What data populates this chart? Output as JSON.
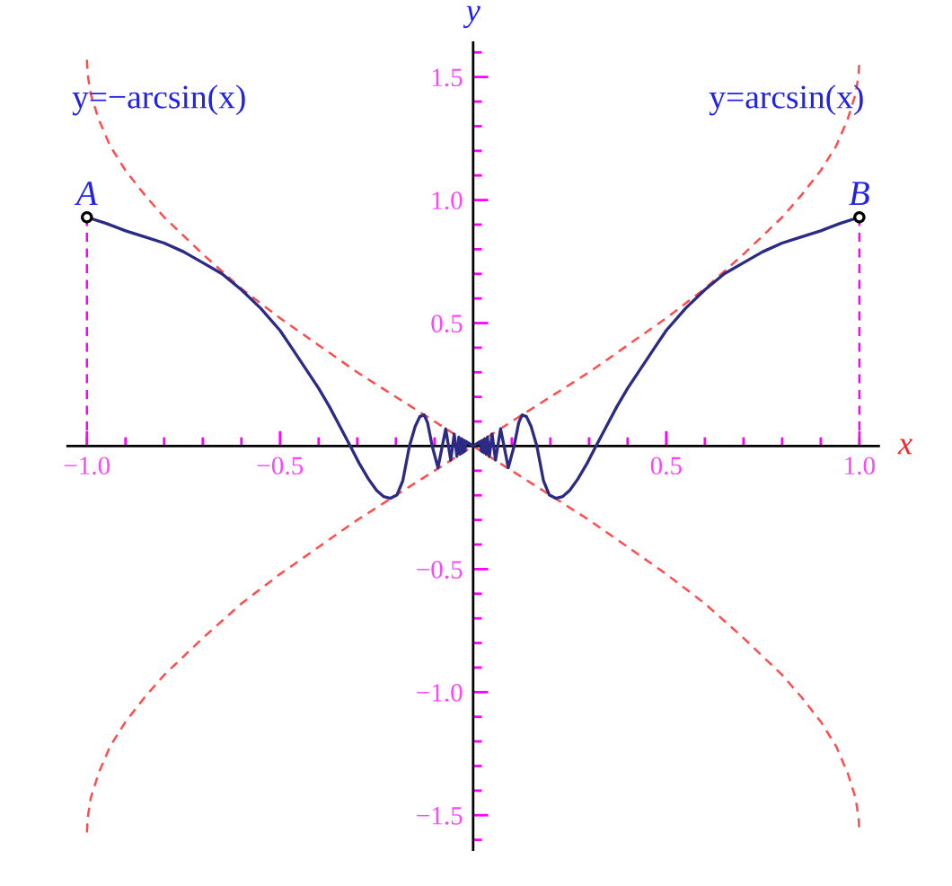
{
  "chart_data": {
    "type": "line",
    "xlabel": "x",
    "ylabel": "y",
    "xlim": [
      -1.05,
      1.05
    ],
    "ylim": [
      -1.64,
      1.64
    ],
    "grid": false,
    "xticks": [
      {
        "value": -1.0,
        "label": "−1.0"
      },
      {
        "value": -0.9,
        "label": null
      },
      {
        "value": -0.8,
        "label": null
      },
      {
        "value": -0.7,
        "label": null
      },
      {
        "value": -0.6,
        "label": null
      },
      {
        "value": -0.5,
        "label": "−0.5"
      },
      {
        "value": -0.4,
        "label": null
      },
      {
        "value": -0.3,
        "label": null
      },
      {
        "value": -0.2,
        "label": null
      },
      {
        "value": -0.1,
        "label": null
      },
      {
        "value": 0.1,
        "label": null
      },
      {
        "value": 0.2,
        "label": null
      },
      {
        "value": 0.3,
        "label": null
      },
      {
        "value": 0.4,
        "label": null
      },
      {
        "value": 0.5,
        "label": "0.5"
      },
      {
        "value": 0.6,
        "label": null
      },
      {
        "value": 0.7,
        "label": null
      },
      {
        "value": 0.8,
        "label": null
      },
      {
        "value": 0.9,
        "label": null
      },
      {
        "value": 1.0,
        "label": "1.0"
      }
    ],
    "yticks": [
      {
        "value": -1.6,
        "label": null
      },
      {
        "value": -1.5,
        "label": "−1.5"
      },
      {
        "value": -1.4,
        "label": null
      },
      {
        "value": -1.3,
        "label": null
      },
      {
        "value": -1.2,
        "label": null
      },
      {
        "value": -1.1,
        "label": null
      },
      {
        "value": -1.0,
        "label": "−1.0"
      },
      {
        "value": -0.9,
        "label": null
      },
      {
        "value": -0.8,
        "label": null
      },
      {
        "value": -0.7,
        "label": null
      },
      {
        "value": -0.6,
        "label": null
      },
      {
        "value": -0.5,
        "label": "−0.5"
      },
      {
        "value": -0.4,
        "label": null
      },
      {
        "value": -0.3,
        "label": null
      },
      {
        "value": -0.2,
        "label": null
      },
      {
        "value": -0.1,
        "label": null
      },
      {
        "value": 0.1,
        "label": null
      },
      {
        "value": 0.2,
        "label": null
      },
      {
        "value": 0.3,
        "label": null
      },
      {
        "value": 0.4,
        "label": null
      },
      {
        "value": 0.5,
        "label": "0.5"
      },
      {
        "value": 0.6,
        "label": null
      },
      {
        "value": 0.7,
        "label": null
      },
      {
        "value": 0.8,
        "label": null
      },
      {
        "value": 0.9,
        "label": null
      },
      {
        "value": 1.0,
        "label": "1.0"
      },
      {
        "value": 1.1,
        "label": null
      },
      {
        "value": 1.2,
        "label": null
      },
      {
        "value": 1.3,
        "label": null
      },
      {
        "value": 1.4,
        "label": null
      },
      {
        "value": 1.5,
        "label": "1.5"
      },
      {
        "value": 1.6,
        "label": null
      }
    ],
    "series": [
      {
        "name": "y=arcsin(x)",
        "color": "#ff4d4d",
        "line_style": "dashed",
        "x": [
          -1,
          -0.998,
          -0.99,
          -0.97,
          -0.94,
          -0.9,
          -0.85,
          -0.8,
          -0.7,
          -0.6,
          -0.5,
          -0.4,
          -0.3,
          -0.2,
          -0.1,
          0,
          0.1,
          0.2,
          0.3,
          0.4,
          0.5,
          0.6,
          0.7,
          0.8,
          0.85,
          0.9,
          0.94,
          0.97,
          0.99,
          0.998,
          1
        ],
        "values": [
          -1.57,
          -1.51,
          -1.43,
          -1.33,
          -1.22,
          -1.12,
          -1.02,
          -0.93,
          -0.78,
          -0.64,
          -0.52,
          -0.41,
          -0.3,
          -0.2,
          -0.1,
          0,
          0.1,
          0.2,
          0.3,
          0.41,
          0.52,
          0.64,
          0.78,
          0.93,
          1.02,
          1.12,
          1.22,
          1.33,
          1.43,
          1.51,
          1.57
        ]
      },
      {
        "name": "y=−arcsin(x)",
        "color": "#ff4d4d",
        "line_style": "dashed",
        "x": [
          -1,
          -0.998,
          -0.99,
          -0.97,
          -0.94,
          -0.9,
          -0.85,
          -0.8,
          -0.7,
          -0.6,
          -0.5,
          -0.4,
          -0.3,
          -0.2,
          -0.1,
          0,
          0.1,
          0.2,
          0.3,
          0.4,
          0.5,
          0.6,
          0.7,
          0.8,
          0.85,
          0.9,
          0.94,
          0.97,
          0.99,
          0.998,
          1
        ],
        "values": [
          1.57,
          1.51,
          1.43,
          1.33,
          1.22,
          1.12,
          1.02,
          0.93,
          0.78,
          0.64,
          0.52,
          0.41,
          0.3,
          0.2,
          0.1,
          0,
          -0.1,
          -0.2,
          -0.3,
          -0.41,
          -0.52,
          -0.64,
          -0.78,
          -0.93,
          -1.02,
          -1.12,
          -1.22,
          -1.33,
          -1.43,
          -1.51,
          -1.57
        ]
      },
      {
        "color": "#ff00ff",
        "line_style": "dashed",
        "x": [
          -1,
          -1
        ],
        "values": [
          0,
          0.93
        ]
      },
      {
        "color": "#ff00ff",
        "line_style": "dashed",
        "x": [
          1,
          1
        ],
        "values": [
          0,
          0.93
        ]
      },
      {
        "color": "#2b2b85",
        "line_style": "solid",
        "x": [
          -1,
          -0.95,
          -0.9,
          -0.85,
          -0.8,
          -0.75,
          -0.7,
          -0.65,
          -0.6,
          -0.55,
          -0.5,
          -0.47,
          -0.434,
          -0.4,
          -0.372,
          -0.345,
          -0.318,
          -0.295,
          -0.271,
          -0.25,
          -0.232,
          -0.214,
          -0.197,
          -0.182,
          -0.165,
          -0.15,
          -0.138,
          -0.127,
          -0.118,
          -0.106,
          -0.091,
          -0.08,
          -0.071,
          -0.058,
          -0.049,
          -0.042,
          -0.037,
          -0.034,
          -0.03,
          -0.028,
          -0.026,
          -0.024,
          -0.022,
          -0.021,
          -0.019,
          0,
          0.019,
          0.021,
          0.022,
          0.024,
          0.026,
          0.028,
          0.03,
          0.034,
          0.037,
          0.042,
          0.049,
          0.058,
          0.071,
          0.08,
          0.091,
          0.106,
          0.118,
          0.127,
          0.138,
          0.15,
          0.165,
          0.182,
          0.197,
          0.214,
          0.232,
          0.25,
          0.271,
          0.295,
          0.318,
          0.345,
          0.372,
          0.4,
          0.434,
          0.47,
          0.5,
          0.55,
          0.6,
          0.65,
          0.7,
          0.75,
          0.8,
          0.85,
          0.9,
          0.95,
          1
        ],
        "values": [
          0.93,
          0.905,
          0.875,
          0.85,
          0.825,
          0.79,
          0.745,
          0.7,
          0.635,
          0.56,
          0.47,
          0.4,
          0.315,
          0.235,
          0.16,
          0.08,
          0,
          -0.07,
          -0.134,
          -0.18,
          -0.205,
          -0.212,
          -0.198,
          -0.14,
          0,
          0.08,
          0.12,
          0.127,
          0.095,
          0,
          -0.088,
          0,
          0.07,
          -0.057,
          0.049,
          -0.042,
          0.037,
          -0.033,
          0.03,
          -0.027,
          0.025,
          -0.023,
          0.022,
          -0.02,
          0.019,
          0,
          0.019,
          -0.02,
          0.022,
          -0.023,
          0.025,
          -0.027,
          0.03,
          -0.033,
          0.037,
          -0.042,
          0.049,
          -0.057,
          0.07,
          0,
          -0.088,
          0,
          0.095,
          0.127,
          0.12,
          0.08,
          0,
          -0.14,
          -0.198,
          -0.212,
          -0.205,
          -0.18,
          -0.134,
          -0.07,
          0,
          0.08,
          0.16,
          0.235,
          0.315,
          0.4,
          0.47,
          0.56,
          0.635,
          0.7,
          0.745,
          0.79,
          0.825,
          0.85,
          0.875,
          0.905,
          0.93
        ]
      },
      {
        "type": "scatter",
        "color": "#000000",
        "marker": "circle",
        "x": [
          -1,
          1
        ],
        "values": [
          0.93,
          0.93
        ]
      }
    ],
    "annotations": [
      {
        "text": "A",
        "x": -1,
        "y": 0.93
      },
      {
        "text": "B",
        "x": 1,
        "y": 0.93
      }
    ]
  }
}
